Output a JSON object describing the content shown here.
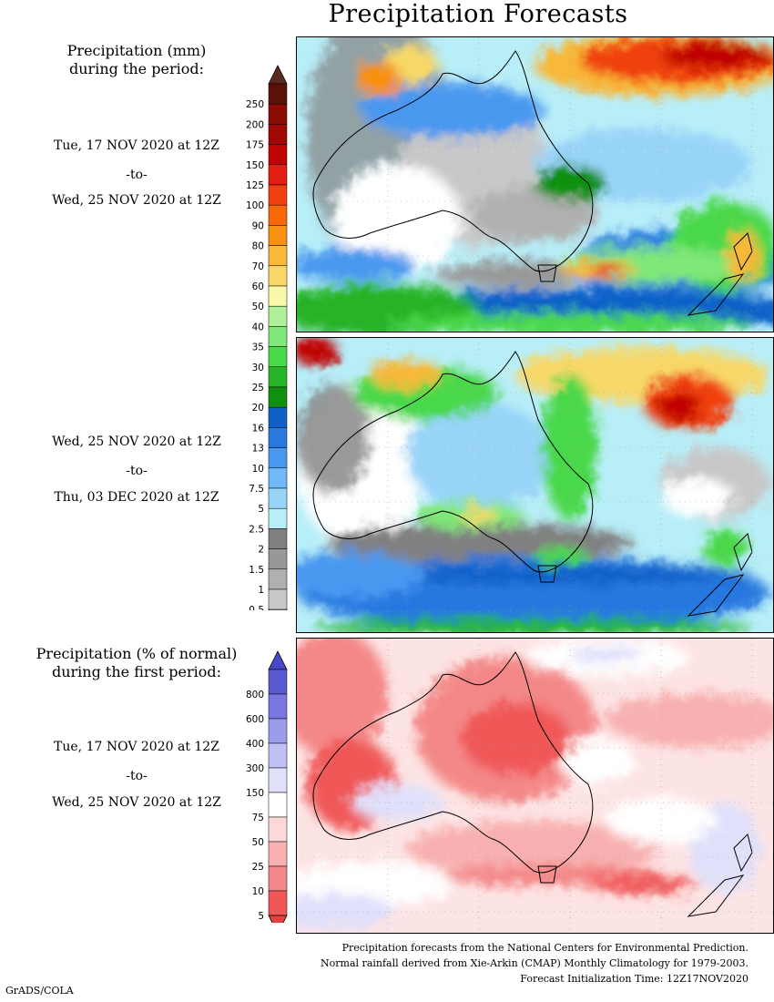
{
  "title": "Precipitation Forecasts",
  "panel1": {
    "heading_line1": "Precipitation (mm)",
    "heading_line2": "during the period:",
    "start": "Tue, 17 NOV 2020 at 12Z",
    "to": "-to-",
    "end": "Wed, 25 NOV 2020 at 12Z"
  },
  "panel2": {
    "start": "Wed, 25 NOV 2020 at 12Z",
    "to": "-to-",
    "end": "Thu, 03 DEC 2020 at 12Z"
  },
  "panel3": {
    "heading_line1": "Precipitation (% of normal)",
    "heading_line2": "during the first period:",
    "start": "Tue, 17 NOV 2020 at 12Z",
    "to": "-to-",
    "end": "Wed, 25 NOV 2020 at 12Z"
  },
  "legend_mm": {
    "labels": [
      "250",
      "200",
      "175",
      "150",
      "125",
      "100",
      "90",
      "80",
      "70",
      "60",
      "50",
      "40",
      "35",
      "30",
      "25",
      "20",
      "16",
      "13",
      "10",
      "7.5",
      "5",
      "2.5",
      "2",
      "1.5",
      "1",
      "0.5"
    ],
    "colors": [
      "#5a1208",
      "#8c0c04",
      "#a00804",
      "#c00404",
      "#e21e10",
      "#f04010",
      "#f86808",
      "#f89010",
      "#f8b838",
      "#f8d868",
      "#f8f8a8",
      "#b0f098",
      "#80e878",
      "#48d848",
      "#28b428",
      "#109010",
      "#1060c8",
      "#2878e0",
      "#4898f0",
      "#70b8f8",
      "#98d4f8",
      "#b8eef8",
      "#808080",
      "#989898",
      "#b0b0b0",
      "#c8c8c8"
    ],
    "top_color": "#5a2a1e"
  },
  "legend_pct": {
    "labels": [
      "800",
      "600",
      "400",
      "300",
      "150",
      "75",
      "50",
      "25",
      "10",
      "5"
    ],
    "colors": [
      "#5a5ad0",
      "#7878e0",
      "#9c9cec",
      "#c0c0f4",
      "#e0e0fa",
      "#ffffff",
      "#fcd8d8",
      "#f8b0b0",
      "#f48888",
      "#f05858"
    ],
    "top_color": "#4848c8",
    "bottom_color": "#e84040"
  },
  "footer": {
    "line1": "Precipitation forecasts from the National Centers for Environmental Prediction.",
    "line2": "Normal rainfall derived from Xie-Arkin (CMAP) Monthly Climatology for 1979-2003.",
    "line3": "Forecast Initialization Time: 12Z17NOV2020"
  },
  "credit": "GrADS/COLA"
}
